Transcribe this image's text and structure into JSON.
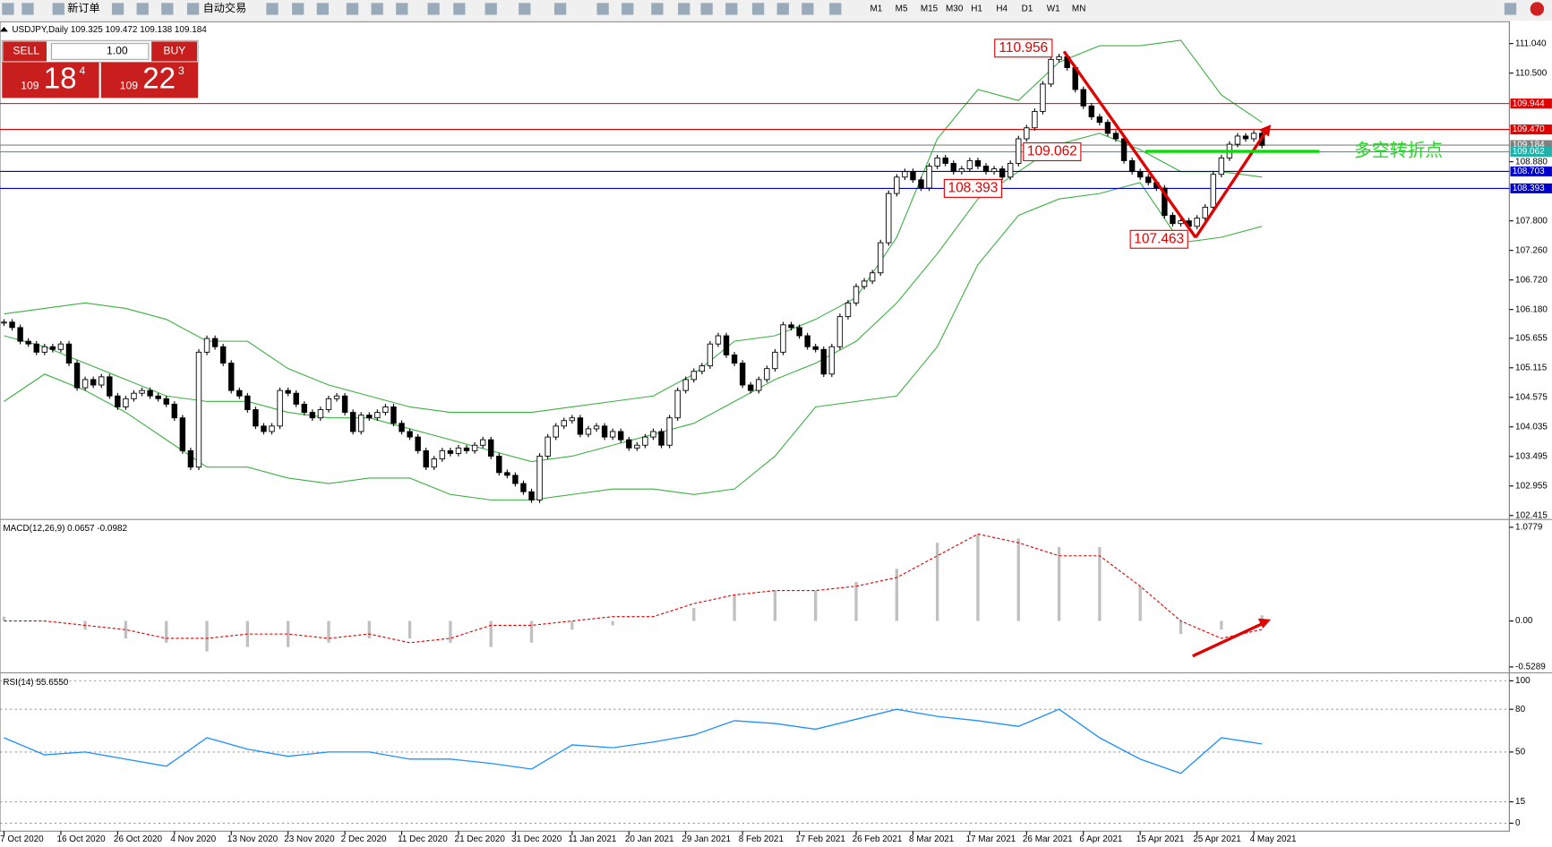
{
  "toolbar": {
    "new_order": "新订单",
    "auto_trading": "自动交易",
    "timeframes": [
      "M1",
      "M5",
      "M15",
      "M30",
      "H1",
      "H4",
      "D1",
      "W1",
      "MN"
    ]
  },
  "trade_panel": {
    "sell": "SELL",
    "buy": "BUY",
    "lot": "1.00",
    "sell_price": [
      "109",
      "18",
      "4"
    ],
    "buy_price": [
      "109",
      "22",
      "3"
    ]
  },
  "time_axis": {
    "labels": [
      "7 Oct 2020",
      "16 Oct 2020",
      "26 Oct 2020",
      "4 Nov 2020",
      "13 Nov 2020",
      "23 Nov 2020",
      "2 Dec 2020",
      "11 Dec 2020",
      "21 Dec 2020",
      "31 Dec 2020",
      "11 Jan 2021",
      "20 Jan 2021",
      "29 Jan 2021",
      "8 Feb 2021",
      "17 Feb 2021",
      "26 Feb 2021",
      "8 Mar 2021",
      "17 Mar 2021",
      "26 Mar 2021",
      "6 Apr 2021",
      "15 Apr 2021",
      "25 Apr 2021",
      "4 May 2021"
    ]
  },
  "chart_data": [
    {
      "type": "candlestick",
      "title": "USDJPY,Daily  109.325 109.472 109.138 109.184",
      "values": [
        105.95,
        105.85,
        105.6,
        105.55,
        105.4,
        105.5,
        105.45,
        105.55,
        105.2,
        104.75,
        104.9,
        104.8,
        104.95,
        104.6,
        104.4,
        104.55,
        104.65,
        104.7,
        104.6,
        104.55,
        104.45,
        104.2,
        103.6,
        103.3,
        105.4,
        105.65,
        105.5,
        105.2,
        104.7,
        104.6,
        104.35,
        104.05,
        103.95,
        104.05,
        104.7,
        104.65,
        104.45,
        104.3,
        104.2,
        104.35,
        104.55,
        104.6,
        104.3,
        103.95,
        104.25,
        104.2,
        104.3,
        104.4,
        104.1,
        103.95,
        103.85,
        103.6,
        103.3,
        103.45,
        103.6,
        103.55,
        103.65,
        103.6,
        103.7,
        103.8,
        103.5,
        103.2,
        103.15,
        103.0,
        102.85,
        102.7,
        103.5,
        103.85,
        104.05,
        104.15,
        104.2,
        103.9,
        104.0,
        104.05,
        103.85,
        103.95,
        103.8,
        103.65,
        103.7,
        103.85,
        103.95,
        103.7,
        104.2,
        104.7,
        104.9,
        105.05,
        105.15,
        105.55,
        105.7,
        105.35,
        105.2,
        104.8,
        104.7,
        104.9,
        105.1,
        105.4,
        105.9,
        105.85,
        105.7,
        105.5,
        105.45,
        105.0,
        105.5,
        106.05,
        106.3,
        106.6,
        106.7,
        106.85,
        107.4,
        108.3,
        108.6,
        108.7,
        108.55,
        108.4,
        108.8,
        108.95,
        108.85,
        108.7,
        108.75,
        108.9,
        108.8,
        108.7,
        108.75,
        108.6,
        108.85,
        109.3,
        109.5,
        109.8,
        110.3,
        110.75,
        110.8,
        110.6,
        110.2,
        109.9,
        109.7,
        109.6,
        109.4,
        109.3,
        108.9,
        108.7,
        108.6,
        108.5,
        108.4,
        107.9,
        107.75,
        107.8,
        107.7,
        107.85,
        108.05,
        108.65,
        108.95,
        109.2,
        109.35,
        109.3,
        109.4,
        109.18
      ],
      "bands": {
        "color": "#3cb043",
        "upper": [
          106.1,
          106.2,
          106.3,
          106.2,
          106.0,
          105.6,
          105.6,
          105.1,
          104.8,
          104.6,
          104.4,
          104.3,
          104.3,
          104.3,
          104.4,
          104.5,
          104.6,
          105.0,
          105.6,
          105.7,
          106.0,
          106.4,
          107.5,
          109.3,
          110.2,
          110.0,
          110.7,
          111.0,
          111.0,
          111.1,
          110.1,
          109.6
        ],
        "middle": [
          105.7,
          105.5,
          105.2,
          104.9,
          104.6,
          104.5,
          104.5,
          104.3,
          104.2,
          104.2,
          104.0,
          103.8,
          103.6,
          103.4,
          103.5,
          103.7,
          103.9,
          104.1,
          104.5,
          104.9,
          105.2,
          105.6,
          106.3,
          107.2,
          108.2,
          108.7,
          109.2,
          109.4,
          109.1,
          108.7,
          108.7,
          108.6
        ],
        "lower": [
          104.5,
          105.0,
          104.7,
          104.3,
          103.8,
          103.3,
          103.3,
          103.1,
          103.0,
          103.1,
          103.1,
          102.8,
          102.7,
          102.7,
          102.8,
          102.9,
          102.9,
          102.8,
          102.9,
          103.5,
          104.4,
          104.5,
          104.6,
          105.5,
          107.0,
          107.9,
          108.2,
          108.3,
          108.5,
          107.4,
          107.5,
          107.7
        ]
      },
      "levels": [
        {
          "value": 109.944,
          "label": "109.944",
          "color": "#e00000"
        },
        {
          "value": 109.47,
          "label": "109.470",
          "color": "#e00000"
        },
        {
          "value": 109.184,
          "label": "109.184",
          "color": "#808080"
        },
        {
          "value": 109.062,
          "label": "109.062",
          "color": "#20b2aa"
        },
        {
          "value": 108.703,
          "label": "108.703",
          "color": "#0000cd"
        },
        {
          "value": 108.393,
          "label": "108.393",
          "color": "#0000cd"
        }
      ],
      "price_annotations": [
        110.956,
        109.062,
        108.393,
        107.463
      ],
      "annotation_text": "多空转折点",
      "ylim": [
        102.361,
        111.402
      ],
      "yticks": [
        {
          "value": 111.04,
          "label": "111.040"
        },
        {
          "value": 110.5,
          "label": "110.500"
        },
        {
          "value": 108.88,
          "label": "108.880"
        },
        {
          "value": 107.8,
          "label": "107.800"
        },
        {
          "value": 107.26,
          "label": "107.260"
        },
        {
          "value": 106.72,
          "label": "106.720"
        },
        {
          "value": 106.18,
          "label": "106.180"
        },
        {
          "value": 105.655,
          "label": "105.655"
        },
        {
          "value": 105.115,
          "label": "105.115"
        },
        {
          "value": 104.575,
          "label": "104.575"
        },
        {
          "value": 104.035,
          "label": "104.035"
        },
        {
          "value": 103.495,
          "label": "103.495"
        },
        {
          "value": 102.955,
          "label": "102.955"
        },
        {
          "value": 102.415,
          "label": "102.415"
        }
      ]
    },
    {
      "type": "macd",
      "title": "MACD(12,26,9) 0.0657 -0.0982",
      "histogram": [
        0.05,
        0.0,
        -0.1,
        -0.2,
        -0.25,
        -0.35,
        -0.3,
        -0.3,
        -0.25,
        -0.2,
        -0.2,
        -0.25,
        -0.3,
        -0.25,
        -0.1,
        -0.05,
        0.0,
        0.15,
        0.3,
        0.35,
        0.35,
        0.45,
        0.6,
        0.9,
        1.0,
        0.95,
        0.85,
        0.85,
        0.4,
        -0.15,
        -0.1,
        0.0657
      ],
      "signal": [
        0.0,
        0.0,
        -0.05,
        -0.1,
        -0.2,
        -0.2,
        -0.15,
        -0.15,
        -0.2,
        -0.15,
        -0.25,
        -0.2,
        -0.05,
        -0.05,
        0.0,
        0.05,
        0.05,
        0.2,
        0.3,
        0.35,
        0.35,
        0.4,
        0.5,
        0.75,
        1.0,
        0.9,
        0.75,
        0.75,
        0.4,
        0.0,
        -0.2,
        -0.0982
      ],
      "histogram_color": "#c0c0c0",
      "signal_color": "#e00000",
      "ylim": [
        -0.574,
        1.145
      ],
      "yticks": [
        1.0779,
        {
          "value": 0,
          "label": "0.00"
        },
        -0.5289
      ]
    },
    {
      "type": "line",
      "title": "RSI(14) 55.6550",
      "values": [
        60,
        48,
        50,
        45,
        40,
        60,
        52,
        47,
        50,
        50,
        45,
        45,
        42,
        38,
        55,
        53,
        57,
        62,
        72,
        70,
        66,
        73,
        80,
        75,
        72,
        68,
        80,
        60,
        45,
        35,
        60,
        55.655
      ],
      "color": "#1e90ff",
      "ylim": [
        -5.6,
        104.2
      ],
      "yticks": [
        100,
        80,
        50,
        15,
        0
      ]
    }
  ]
}
